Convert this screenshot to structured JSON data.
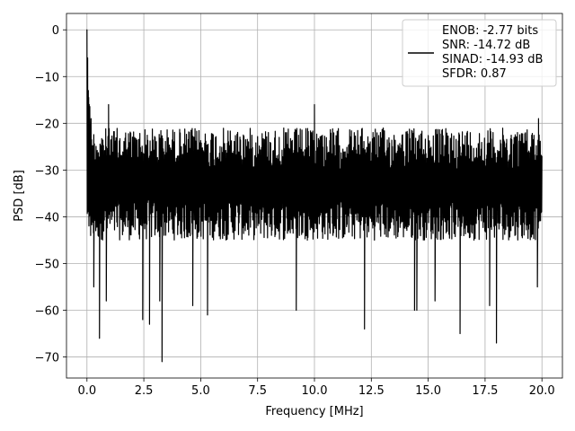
{
  "chart_data": {
    "type": "line",
    "title": "",
    "xlabel": "Frequency [MHz]",
    "ylabel": "PSD [dB]",
    "xlim": [
      -0.9,
      20.9
    ],
    "ylim": [
      -74.5,
      3.5
    ],
    "x_ticks": [
      0.0,
      2.5,
      5.0,
      7.5,
      10.0,
      12.5,
      15.0,
      17.5,
      20.0
    ],
    "x_tick_labels": [
      "0.0",
      "2.5",
      "5.0",
      "7.5",
      "10.0",
      "12.5",
      "15.0",
      "17.5",
      "20.0"
    ],
    "y_ticks": [
      0,
      -10,
      -20,
      -30,
      -40,
      -50,
      -60,
      -70
    ],
    "y_tick_labels": [
      "0",
      "−10",
      "−20",
      "−30",
      "−40",
      "−50",
      "−60",
      "−70"
    ],
    "grid": true,
    "legend_position": "top-right",
    "series": [
      {
        "color": "#000000",
        "x_range": [
          0,
          20
        ],
        "typical_band": [
          -45,
          -21
        ],
        "peaks": [
          {
            "x": 0.0,
            "y": 0
          },
          {
            "x": 0.03,
            "y": -6
          },
          {
            "x": 0.06,
            "y": -13
          },
          {
            "x": 0.1,
            "y": -16
          },
          {
            "x": 0.18,
            "y": -19
          },
          {
            "x": 0.95,
            "y": -16
          },
          {
            "x": 10.0,
            "y": -16
          },
          {
            "x": 19.85,
            "y": -19
          }
        ],
        "dips": [
          {
            "x": 0.3,
            "y": -55
          },
          {
            "x": 0.55,
            "y": -66
          },
          {
            "x": 0.85,
            "y": -58
          },
          {
            "x": 2.45,
            "y": -62
          },
          {
            "x": 2.75,
            "y": -63
          },
          {
            "x": 3.2,
            "y": -58
          },
          {
            "x": 3.3,
            "y": -71
          },
          {
            "x": 4.65,
            "y": -59
          },
          {
            "x": 5.3,
            "y": -61
          },
          {
            "x": 9.2,
            "y": -60
          },
          {
            "x": 12.2,
            "y": -64
          },
          {
            "x": 14.4,
            "y": -60
          },
          {
            "x": 14.5,
            "y": -60
          },
          {
            "x": 15.3,
            "y": -58
          },
          {
            "x": 16.4,
            "y": -65
          },
          {
            "x": 17.7,
            "y": -59
          },
          {
            "x": 18.0,
            "y": -67
          },
          {
            "x": 19.8,
            "y": -55
          }
        ]
      }
    ],
    "legend": {
      "lines": [
        "ENOB: -2.77 bits",
        "SNR: -14.72 dB",
        "SINAD: -14.93 dB",
        "SFDR: 0.87"
      ]
    }
  }
}
